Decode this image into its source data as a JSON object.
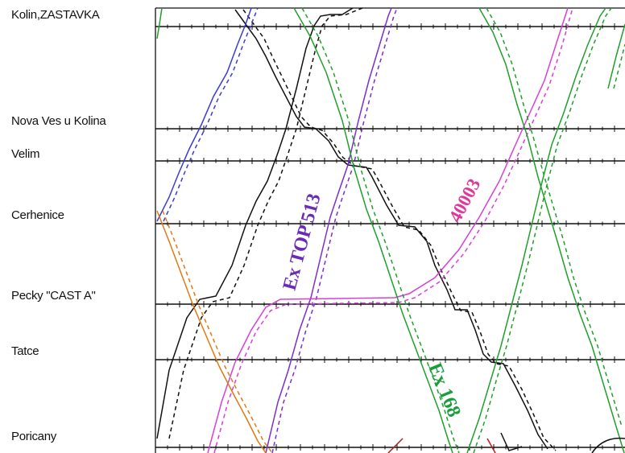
{
  "stations": [
    {
      "id": "kolin-zastavka",
      "name": "Kolin,ZASTAVKA"
    },
    {
      "id": "nova-ves-u-kolina",
      "name": "Nova Ves u Kolina"
    },
    {
      "id": "velim",
      "name": "Velim"
    },
    {
      "id": "cerhenice",
      "name": "Cerhenice"
    },
    {
      "id": "pecky-cast-a",
      "name": "Pecky \"CAST A\""
    },
    {
      "id": "tatce",
      "name": "Tatce"
    },
    {
      "id": "poricany",
      "name": "Poricany"
    }
  ],
  "train_labels": [
    {
      "id": "ex-top-513",
      "text": "Ex TOP 513",
      "color": "#6a2bb8"
    },
    {
      "id": "40003",
      "text": "40003",
      "color": "#e0389a"
    },
    {
      "id": "ex-168",
      "text": "Ex 168",
      "color": "#1a9e3a"
    }
  ],
  "colors": {
    "black": "#111111",
    "blue": "#3b3bd6",
    "purple": "#7a2fd0",
    "magenta": "#d83fd8",
    "green": "#1fa02a",
    "orange": "#e07a10",
    "red": "#c01818"
  }
}
